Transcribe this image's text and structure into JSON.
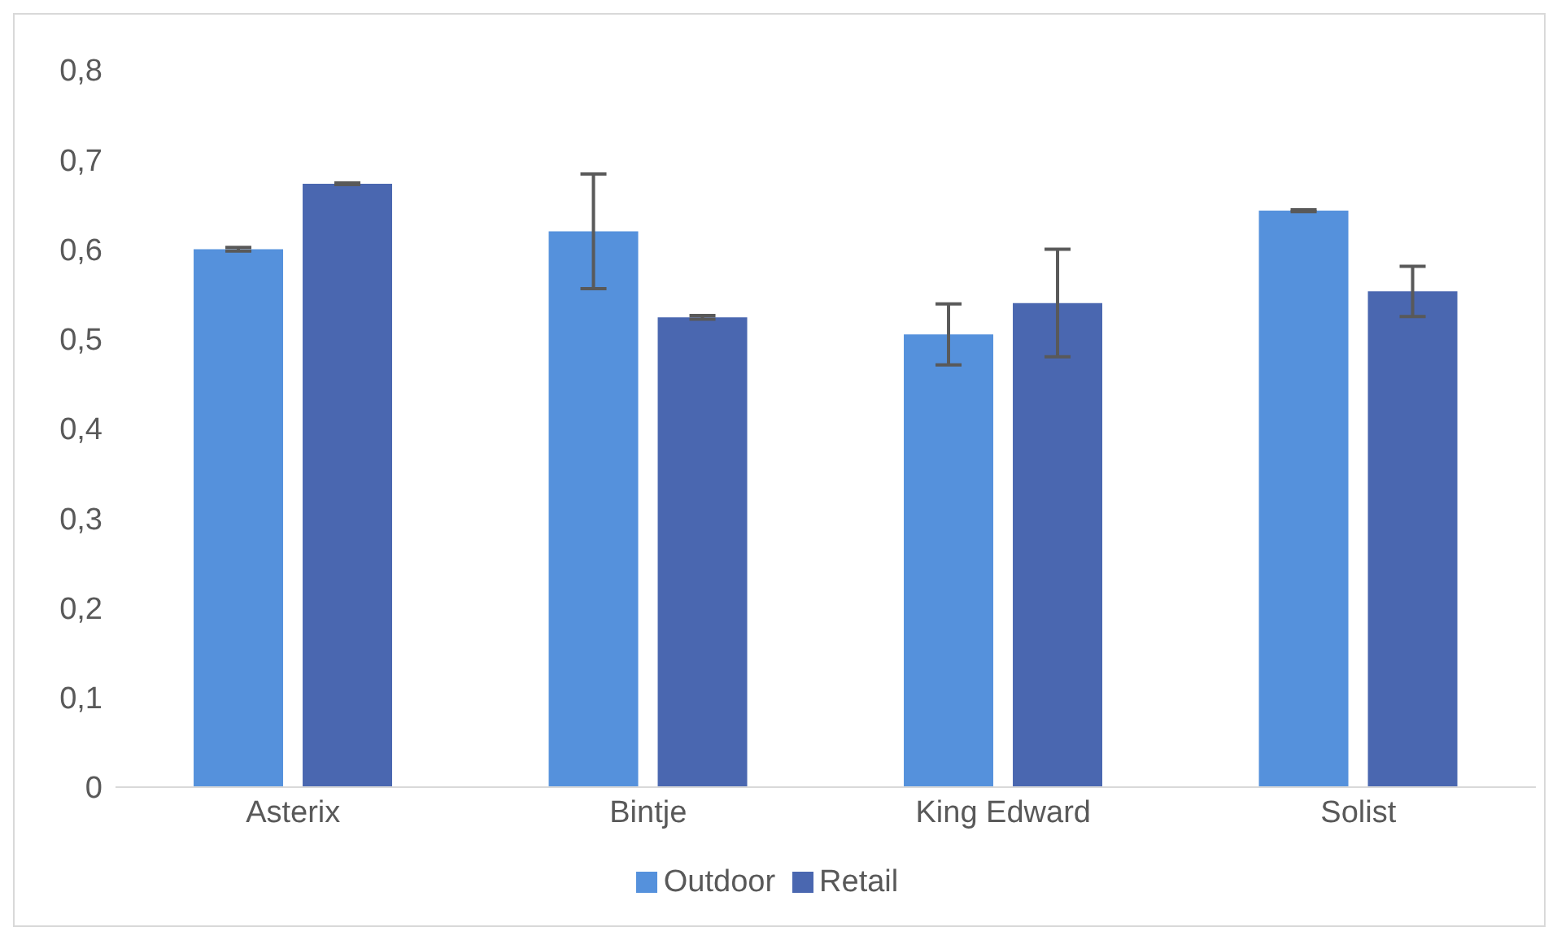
{
  "chart_data": {
    "type": "bar",
    "categories": [
      "Asterix",
      "Bintje",
      "King Edward",
      "Solist"
    ],
    "series": [
      {
        "name": "Outdoor",
        "color": "#5591dc",
        "values": [
          0.6,
          0.62,
          0.505,
          0.643
        ],
        "errors": [
          0.002,
          0.064,
          0.034,
          0.001
        ]
      },
      {
        "name": "Retail",
        "color": "#4a67b0",
        "values": [
          0.673,
          0.524,
          0.54,
          0.553
        ],
        "errors": [
          0.001,
          0.002,
          0.06,
          0.028
        ]
      }
    ],
    "ylim": [
      0,
      0.8
    ],
    "yticks": [
      0,
      {
        "value": 0.1,
        "label": "0,1"
      },
      {
        "value": 0.2,
        "label": "0,2"
      },
      {
        "value": 0.3,
        "label": "0,3"
      },
      {
        "value": 0.4,
        "label": "0,4"
      },
      {
        "value": 0.5,
        "label": "0,5"
      },
      {
        "value": 0.6,
        "label": "0,6"
      },
      {
        "value": 0.7,
        "label": "0,7"
      },
      {
        "value": 0.8,
        "label": "0,8"
      }
    ],
    "grid": false,
    "legend": "bottom"
  }
}
